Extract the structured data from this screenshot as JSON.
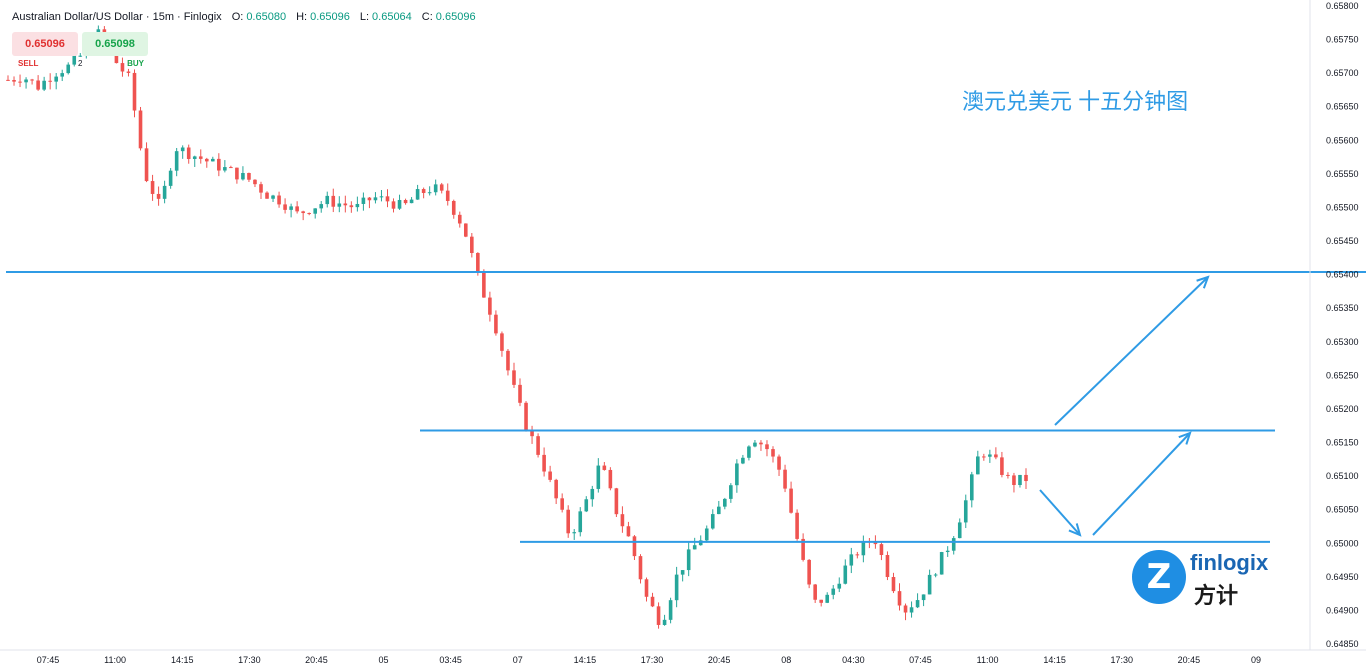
{
  "header": {
    "symbol": "Australian Dollar/US Dollar · 15m · Finlogix",
    "o_label": "O:",
    "o": "0.65080",
    "h_label": "H:",
    "h": "0.65096",
    "l_label": "L:",
    "l": "0.65064",
    "c_label": "C:",
    "c": "0.65096"
  },
  "trade_panel": {
    "sell_price": "0.65096",
    "buy_price": "0.65098",
    "sell_label": "SELL",
    "buy_label": "BUY",
    "quantity": "2"
  },
  "annotation": "澳元兑美元 十五分钟图",
  "logo": {
    "brand": "finlogix",
    "brand_cn": "方计",
    "mark": "Z"
  },
  "colors": {
    "up": "#26a69a",
    "down": "#ef5350",
    "line": "#2f9be5",
    "accent": "#2196f3"
  },
  "chart_data": {
    "type": "candlestick",
    "ylim": [
      0.6485,
      0.658
    ],
    "y_ticks": [
      "0.65800",
      "0.65750",
      "0.65700",
      "0.65650",
      "0.65600",
      "0.65550",
      "0.65500",
      "0.65450",
      "0.65400",
      "0.65350",
      "0.65300",
      "0.65250",
      "0.65200",
      "0.65150",
      "0.65100",
      "0.65050",
      "0.65000",
      "0.64950",
      "0.64900",
      "0.64850"
    ],
    "x_ticks": [
      "07:45",
      "11:00",
      "14:15",
      "17:30",
      "20:45",
      "05",
      "03:45",
      "07",
      "14:15",
      "17:30",
      "20:45",
      "08",
      "04:30",
      "07:45",
      "11:00",
      "14:15",
      "17:30",
      "20:45",
      "09"
    ],
    "price_path": [
      0.6569,
      0.65695,
      0.6568,
      0.657,
      0.6571,
      0.6573,
      0.6576,
      0.6572,
      0.6569,
      0.6555,
      0.655,
      0.6559,
      0.6558,
      0.6557,
      0.6556,
      0.6555,
      0.6554,
      0.6552,
      0.6551,
      0.6549,
      0.655,
      0.6551,
      0.65505,
      0.655,
      0.65515,
      0.6551,
      0.655,
      0.6552,
      0.6553,
      0.6551,
      0.6547,
      0.6539,
      0.6533,
      0.6525,
      0.6518,
      0.6513,
      0.6507,
      0.6501,
      0.6506,
      0.6512,
      0.6505,
      0.65,
      0.6492,
      0.6488,
      0.6495,
      0.6499,
      0.6502,
      0.6506,
      0.6512,
      0.6516,
      0.6514,
      0.651,
      0.65,
      0.6491,
      0.6492,
      0.6496,
      0.6499,
      0.6501,
      0.6495,
      0.649,
      0.6492,
      0.6496,
      0.65,
      0.6506,
      0.6514,
      0.6512,
      0.6509,
      0.65096
    ],
    "horizontal_levels": [
      0.65404,
      0.65168,
      0.65002
    ]
  }
}
